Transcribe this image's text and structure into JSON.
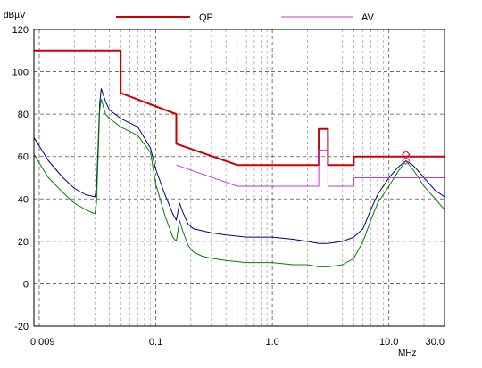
{
  "chart_data": {
    "type": "line",
    "title": "",
    "y_unit_label": "dBµV",
    "x_unit_label": "MHz",
    "x_scale": "log",
    "xlim": [
      0.009,
      30.0
    ],
    "ylim": [
      -20,
      120
    ],
    "grid": true,
    "legend_position": "top",
    "y_ticks": [
      -20,
      0,
      20,
      40,
      60,
      80,
      100,
      120
    ],
    "x_ticks": [
      {
        "value": 0.009,
        "label": "0.009"
      },
      {
        "value": 0.1,
        "label": "0.1"
      },
      {
        "value": 1.0,
        "label": "1.0"
      },
      {
        "value": 10.0,
        "label": "10.0"
      },
      {
        "value": 30.0,
        "label": "30.0"
      }
    ],
    "legend": [
      {
        "label": "QP",
        "color": "#cc0000"
      },
      {
        "label": "AV",
        "color": "#cc33cc"
      }
    ],
    "series": [
      {
        "name": "QP",
        "role": "limit",
        "color": "#cc0000",
        "points": [
          [
            0.009,
            110
          ],
          [
            0.05,
            110
          ],
          [
            0.05,
            90
          ],
          [
            0.15,
            80
          ],
          [
            0.15,
            66
          ],
          [
            0.5,
            56
          ],
          [
            2.5,
            56
          ],
          [
            2.5,
            73
          ],
          [
            3.0,
            73
          ],
          [
            3.0,
            56
          ],
          [
            5.0,
            56
          ],
          [
            5.0,
            60
          ],
          [
            30.0,
            60
          ]
        ]
      },
      {
        "name": "AV",
        "role": "limit",
        "color": "#cc33cc",
        "points": [
          [
            0.15,
            56
          ],
          [
            0.5,
            46
          ],
          [
            2.5,
            46
          ],
          [
            2.5,
            63
          ],
          [
            3.0,
            63
          ],
          [
            3.0,
            46
          ],
          [
            5.0,
            46
          ],
          [
            5.0,
            50
          ],
          [
            30.0,
            50
          ]
        ]
      },
      {
        "role": "measurement",
        "color": "#000080",
        "points": [
          [
            0.009,
            69
          ],
          [
            0.012,
            58
          ],
          [
            0.016,
            50
          ],
          [
            0.02,
            45
          ],
          [
            0.025,
            42
          ],
          [
            0.03,
            41
          ],
          [
            0.031,
            45
          ],
          [
            0.033,
            85
          ],
          [
            0.034,
            92
          ],
          [
            0.037,
            86
          ],
          [
            0.04,
            82
          ],
          [
            0.05,
            78
          ],
          [
            0.07,
            74
          ],
          [
            0.09,
            64
          ],
          [
            0.1,
            54
          ],
          [
            0.12,
            42
          ],
          [
            0.14,
            33
          ],
          [
            0.15,
            30
          ],
          [
            0.16,
            38
          ],
          [
            0.17,
            34
          ],
          [
            0.19,
            28
          ],
          [
            0.21,
            26
          ],
          [
            0.25,
            25
          ],
          [
            0.3,
            24
          ],
          [
            0.4,
            23
          ],
          [
            0.6,
            22
          ],
          [
            1.0,
            22
          ],
          [
            1.5,
            21
          ],
          [
            2.0,
            20
          ],
          [
            2.5,
            19
          ],
          [
            3.0,
            19
          ],
          [
            4.0,
            20
          ],
          [
            5.0,
            22
          ],
          [
            6.0,
            26
          ],
          [
            7.0,
            35
          ],
          [
            8.0,
            42
          ],
          [
            10.0,
            50
          ],
          [
            12.0,
            55
          ],
          [
            14.0,
            58
          ],
          [
            16.0,
            56
          ],
          [
            18.0,
            53
          ],
          [
            20.0,
            50
          ],
          [
            25.0,
            44
          ],
          [
            30.0,
            41
          ]
        ]
      },
      {
        "role": "measurement",
        "color": "#008000",
        "points": [
          [
            0.009,
            61
          ],
          [
            0.012,
            50
          ],
          [
            0.016,
            43
          ],
          [
            0.02,
            38
          ],
          [
            0.025,
            35
          ],
          [
            0.03,
            33
          ],
          [
            0.031,
            38
          ],
          [
            0.033,
            82
          ],
          [
            0.034,
            87
          ],
          [
            0.037,
            80
          ],
          [
            0.04,
            78
          ],
          [
            0.05,
            74
          ],
          [
            0.07,
            70
          ],
          [
            0.09,
            62
          ],
          [
            0.1,
            47
          ],
          [
            0.12,
            32
          ],
          [
            0.14,
            22
          ],
          [
            0.15,
            20
          ],
          [
            0.16,
            30
          ],
          [
            0.17,
            25
          ],
          [
            0.19,
            18
          ],
          [
            0.21,
            15
          ],
          [
            0.25,
            13
          ],
          [
            0.3,
            12
          ],
          [
            0.4,
            11
          ],
          [
            0.6,
            10
          ],
          [
            1.0,
            10
          ],
          [
            1.5,
            9
          ],
          [
            2.0,
            9
          ],
          [
            2.5,
            8
          ],
          [
            3.0,
            8
          ],
          [
            4.0,
            9
          ],
          [
            5.0,
            12
          ],
          [
            6.0,
            20
          ],
          [
            7.0,
            30
          ],
          [
            8.0,
            38
          ],
          [
            10.0,
            46
          ],
          [
            12.0,
            53
          ],
          [
            14.0,
            58
          ],
          [
            16.0,
            54
          ],
          [
            18.0,
            50
          ],
          [
            20.0,
            46
          ],
          [
            25.0,
            40
          ],
          [
            30.0,
            35
          ]
        ]
      }
    ],
    "markers": [
      {
        "x": 14.0,
        "y": 61,
        "shape": "diamond",
        "color": "#cc0000"
      },
      {
        "x": 14.0,
        "y": 58,
        "shape": "diamond",
        "color": "#cc33cc"
      }
    ]
  }
}
